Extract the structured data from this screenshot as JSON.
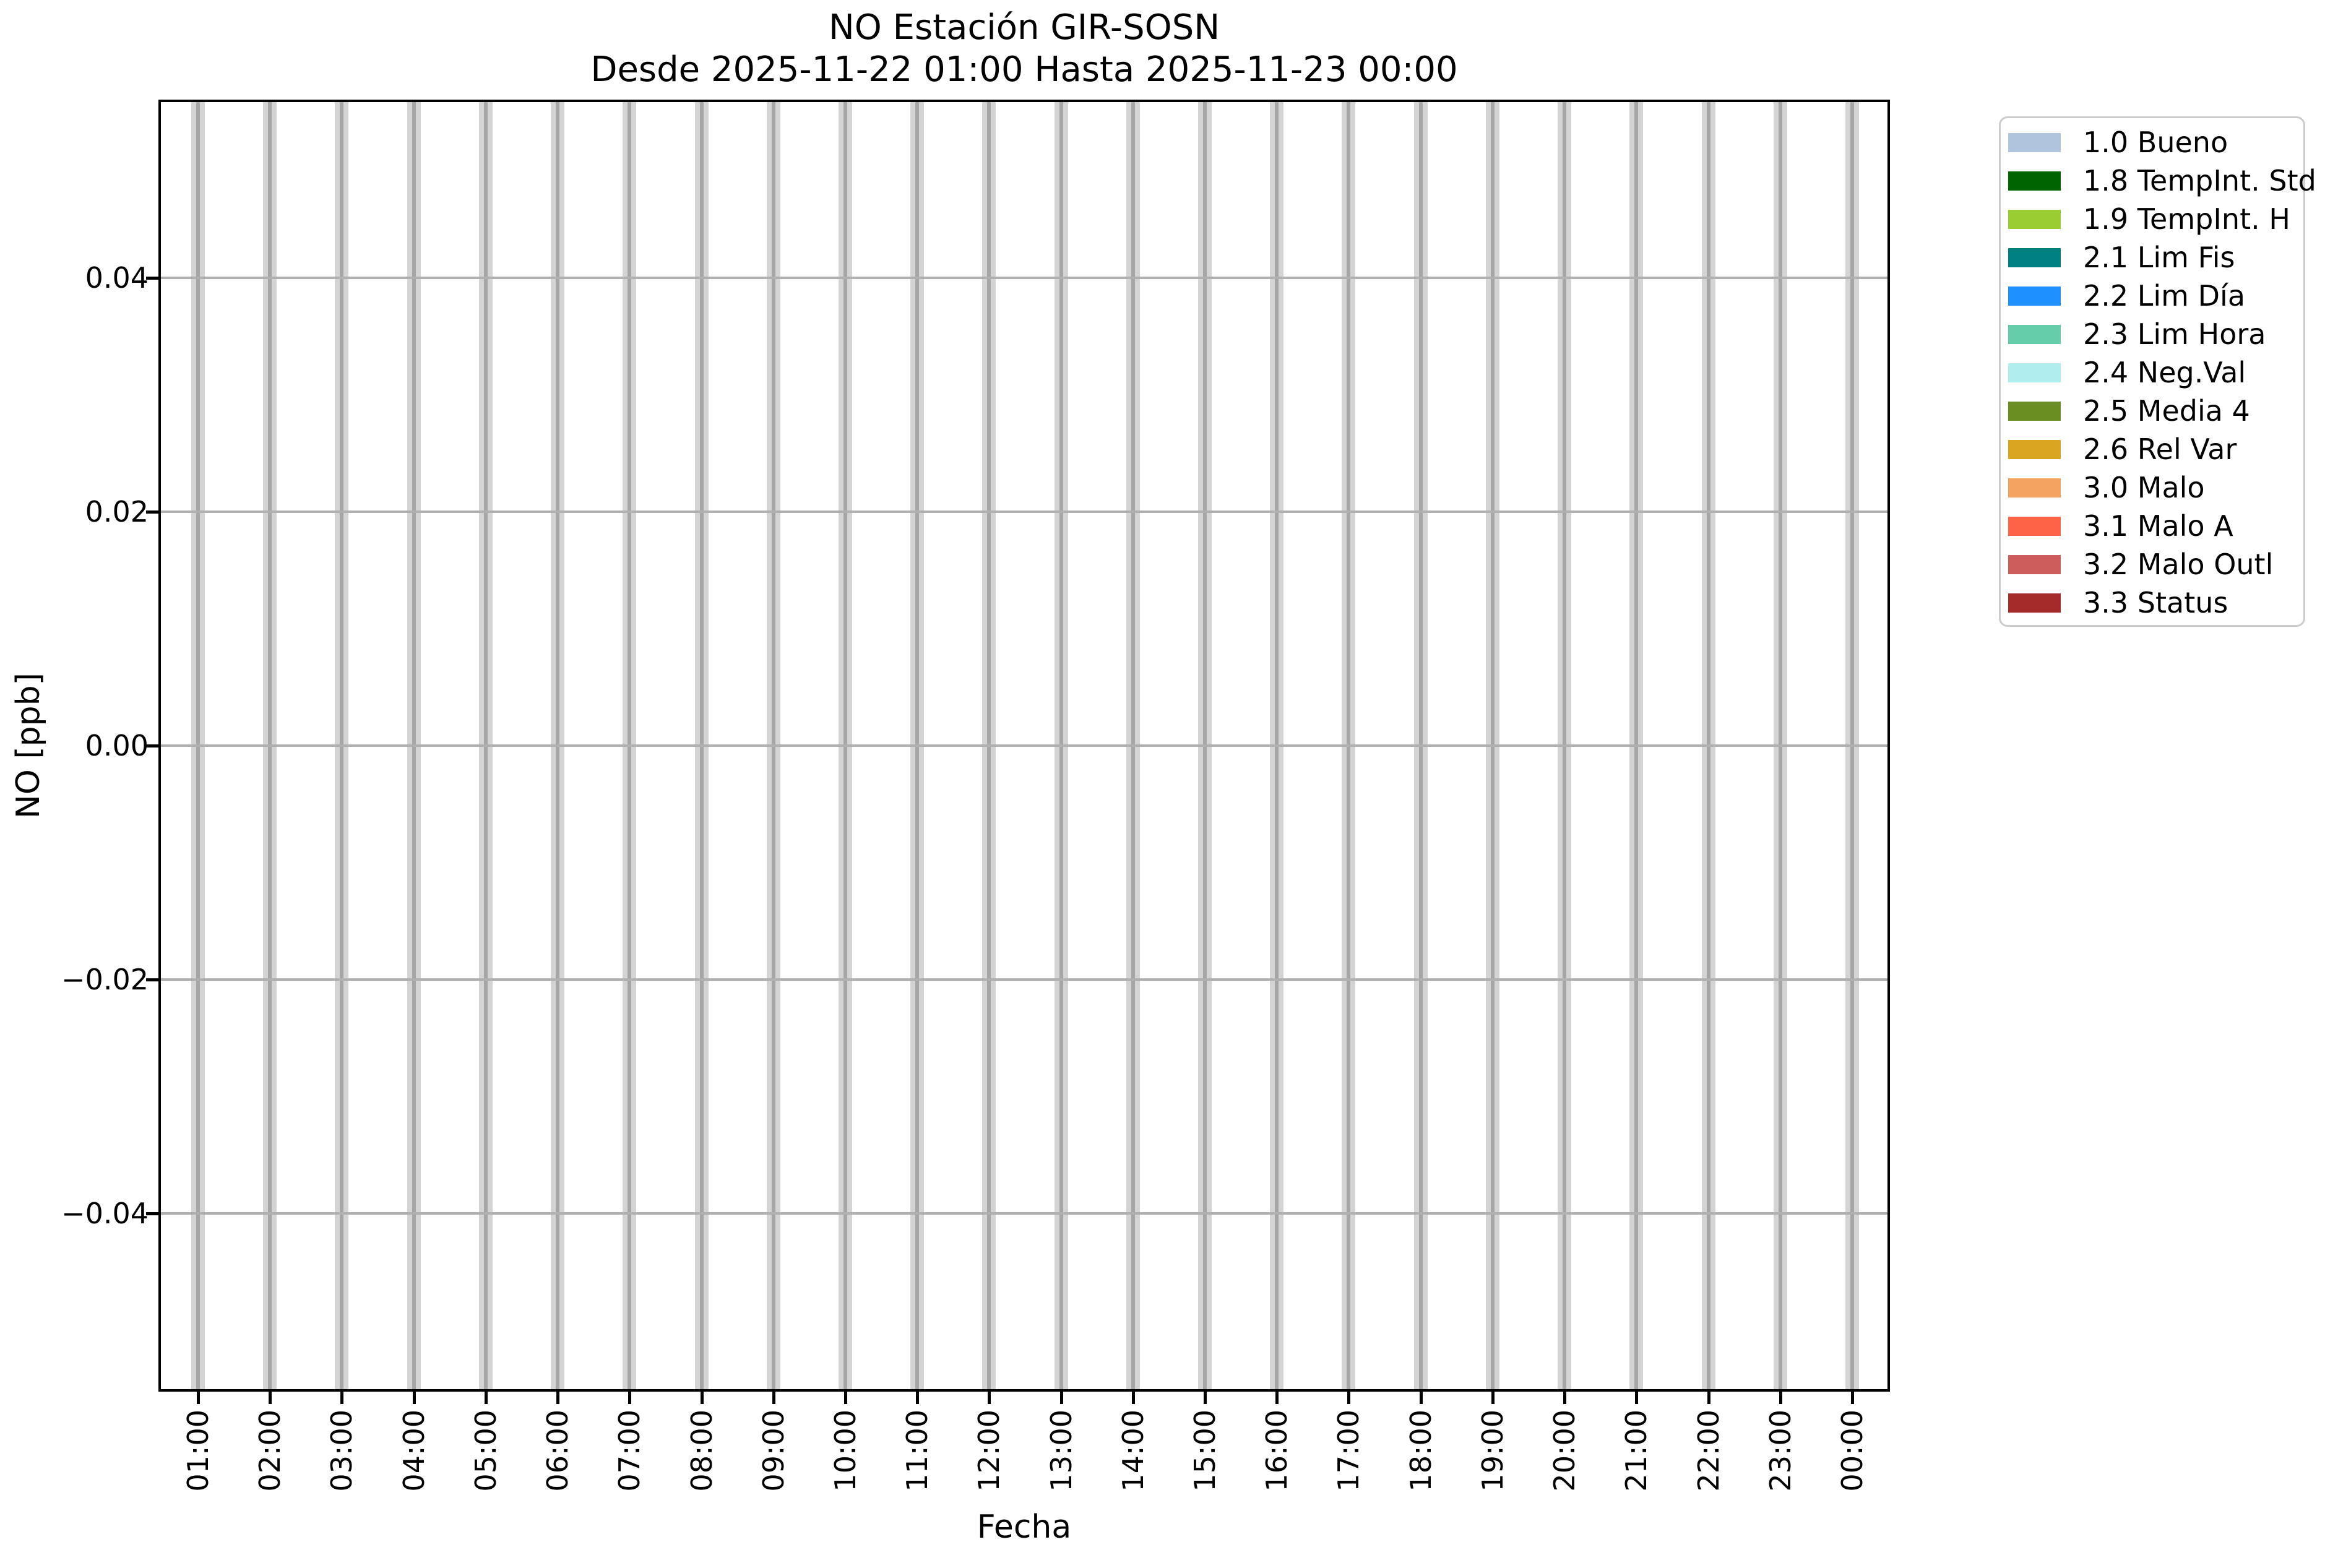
{
  "title": {
    "line1": "NO Estación GIR-SOSN",
    "line2": "Desde 2025-11-22 01:00 Hasta 2025-11-23 00:00"
  },
  "chart_data": {
    "type": "bar",
    "title": "NO Estación GIR-SOSN",
    "subtitle": "Desde 2025-11-22 01:00 Hasta 2025-11-23 00:00",
    "xlabel": "Fecha",
    "ylabel": "NO [ppb]",
    "categories": [
      "01:00",
      "02:00",
      "03:00",
      "04:00",
      "05:00",
      "06:00",
      "07:00",
      "08:00",
      "09:00",
      "10:00",
      "11:00",
      "12:00",
      "13:00",
      "14:00",
      "15:00",
      "16:00",
      "17:00",
      "18:00",
      "19:00",
      "20:00",
      "21:00",
      "22:00",
      "23:00",
      "00:00"
    ],
    "series": [],
    "y_tick_labels": [
      "0.04",
      "0.02",
      "0.00",
      "−0.02",
      "−0.04"
    ],
    "y_tick_values": [
      0.04,
      0.02,
      0.0,
      -0.02,
      -0.04
    ],
    "ylim": [
      -0.055,
      0.055
    ],
    "grid": true,
    "legend_position": "outside upper right",
    "legend": [
      {
        "label": "1.0 Bueno",
        "color": "#b0c4de"
      },
      {
        "label": "1.8 TempInt. Std",
        "color": "#006400"
      },
      {
        "label": "1.9 TempInt. H",
        "color": "#9acd32"
      },
      {
        "label": "2.1 Lim Fis",
        "color": "#008080"
      },
      {
        "label": "2.2 Lim Día",
        "color": "#1e90ff"
      },
      {
        "label": "2.3 Lim Hora",
        "color": "#66cdaa"
      },
      {
        "label": "2.4 Neg.Val",
        "color": "#afeeee"
      },
      {
        "label": "2.5 Media 4",
        "color": "#6b8e23"
      },
      {
        "label": "2.6 Rel Var",
        "color": "#daa520"
      },
      {
        "label": "3.0 Malo",
        "color": "#f4a460"
      },
      {
        "label": "3.1 Malo A",
        "color": "#ff6347"
      },
      {
        "label": "3.2 Malo Outl",
        "color": "#cd5c5c"
      },
      {
        "label": "3.3 Status",
        "color": "#a52a2a"
      }
    ],
    "colors": {
      "background": "#ffffff",
      "spine": "#000000",
      "grid_horizontal": "#b0b0b0",
      "hour_band": "#d4d4d4",
      "hour_gridline": "#a6a6a6",
      "legend_border": "#cccccc"
    }
  }
}
